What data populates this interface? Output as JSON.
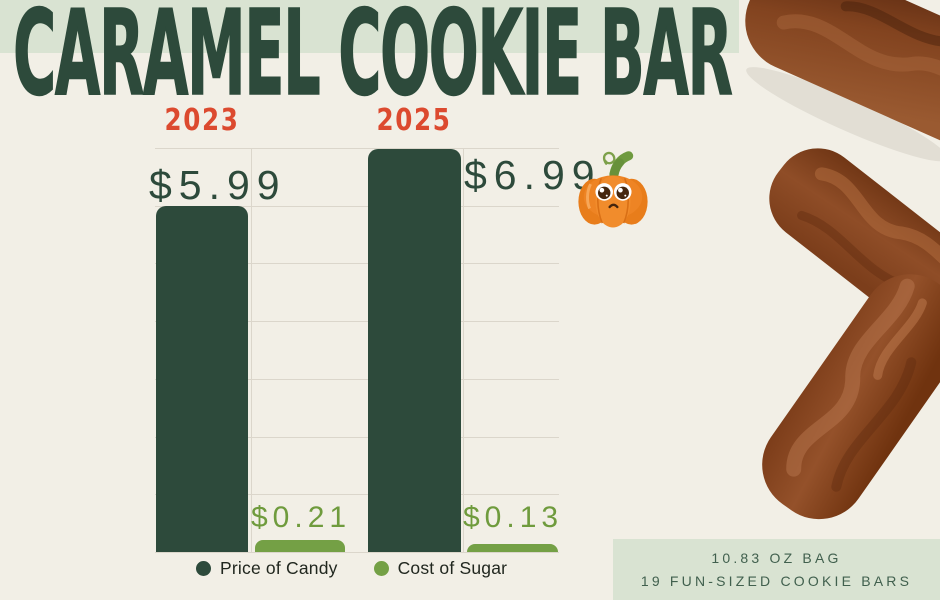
{
  "page": {
    "title": "CARAMEL COOKIE BAR"
  },
  "chart_data": {
    "type": "bar",
    "categories": [
      "2023",
      "2025"
    ],
    "series": [
      {
        "name": "Price of Candy",
        "values": [
          5.99,
          6.99
        ],
        "labels": [
          "$5.99",
          "$6.99"
        ],
        "color": "#2d4a3b"
      },
      {
        "name": "Cost of Sugar",
        "values": [
          0.21,
          0.13
        ],
        "labels": [
          "$0.21",
          "$0.13"
        ],
        "color": "#74a045"
      }
    ],
    "ylim": [
      0,
      7
    ],
    "gridline_step": 1,
    "grid": "horizontal lines each $1 plus vertical line at each category center",
    "legend_position": "bottom"
  },
  "footer_box": {
    "line1": "10.83 OZ BAG",
    "line2": "19 FUN-SIZED COOKIE BARS"
  },
  "decorations": {
    "pumpkin_icon": "sad-pumpkin-emoji",
    "photo": "chocolate-covered-cookie-bars"
  },
  "colors": {
    "background": "#f2efe6",
    "banner_green": "#d9e3d2",
    "dark_green": "#2d4a3b",
    "year_red": "#dc4a2f",
    "sugar_green": "#74a045",
    "gridline": "#dbd6cb",
    "legend_text": "#21271f",
    "footer_text": "#41604e"
  }
}
